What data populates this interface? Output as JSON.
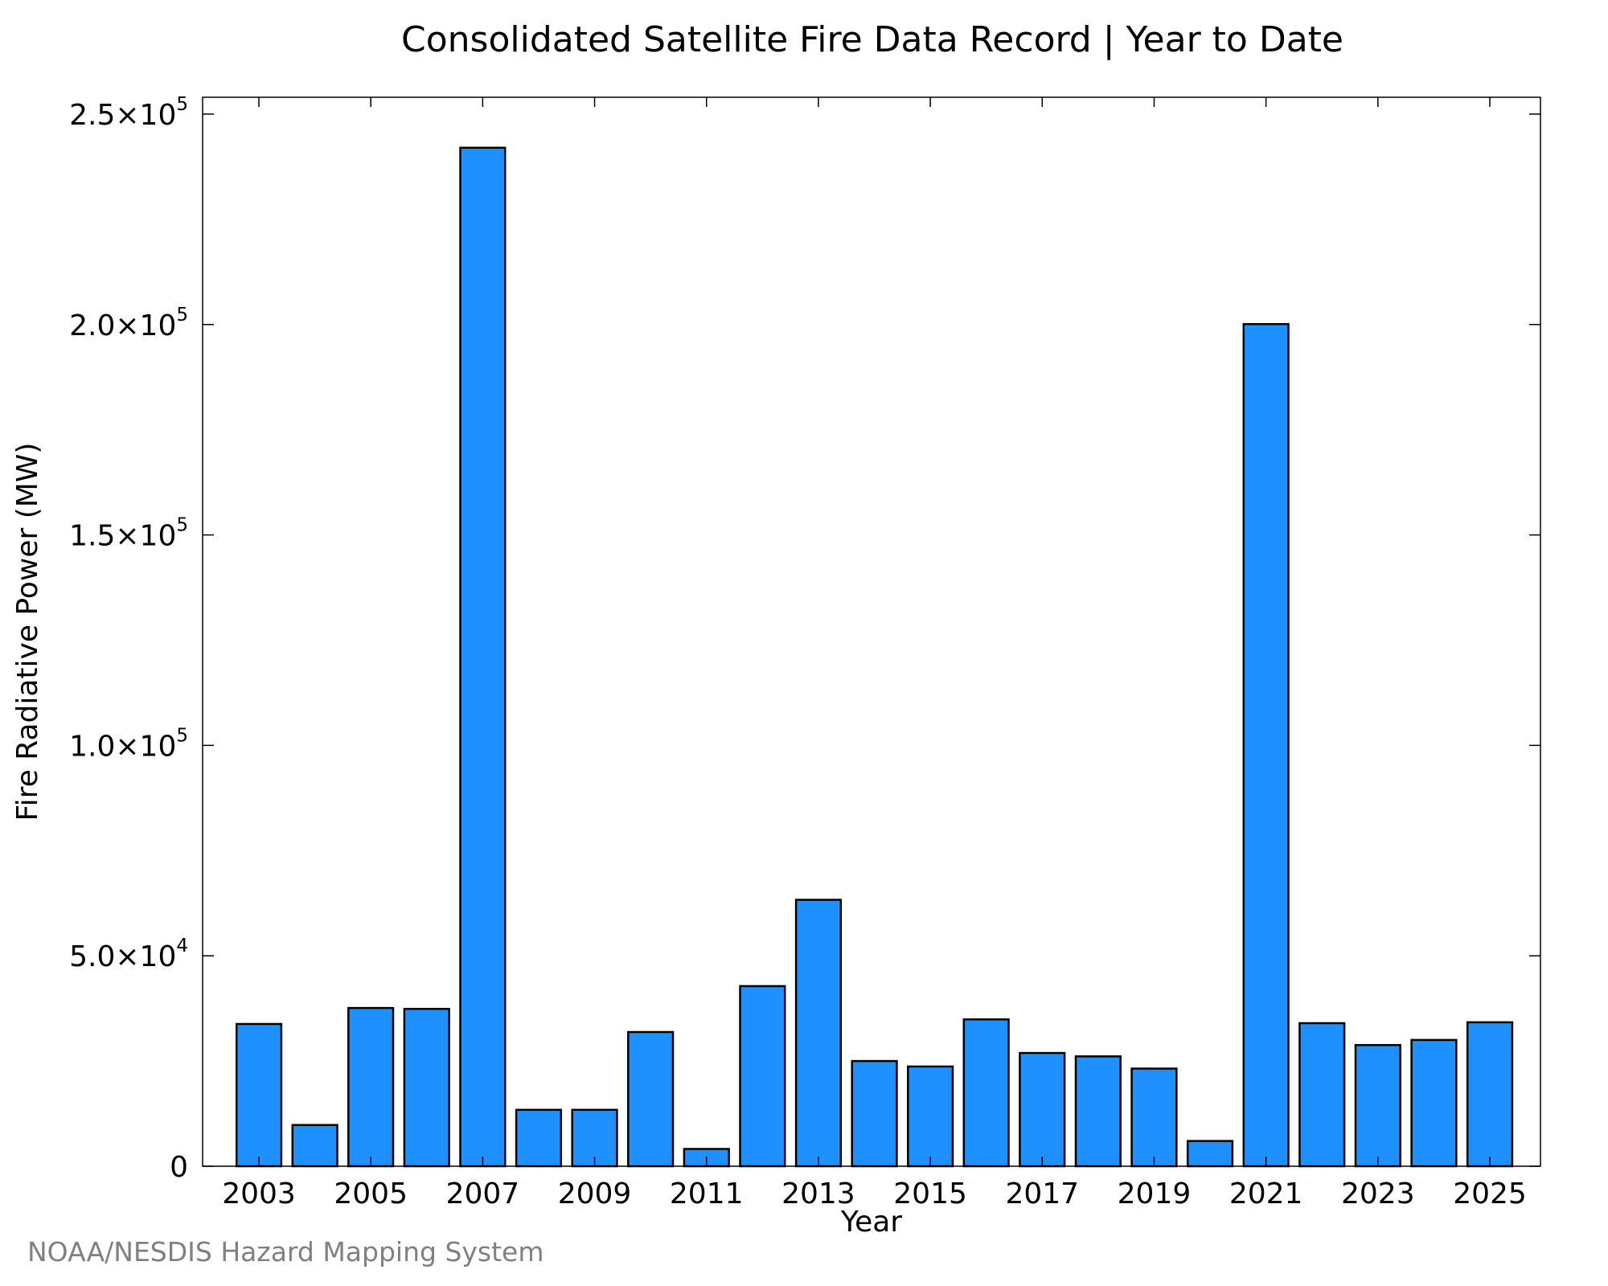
{
  "chart_data": {
    "type": "bar",
    "title": "Consolidated Satellite Fire Data Record | Year to Date",
    "xlabel": "Year",
    "ylabel": "Fire Radiative Power (MW)",
    "ylim": [
      0,
      254000
    ],
    "x_tick_labels": [
      "2003",
      "2005",
      "2007",
      "2009",
      "2011",
      "2013",
      "2015",
      "2017",
      "2019",
      "2021",
      "2023",
      "2025"
    ],
    "y_ticks": [
      {
        "value": 0,
        "mantissa": "0",
        "exponent": ""
      },
      {
        "value": 50000,
        "mantissa": "5.0×10",
        "exponent": "4"
      },
      {
        "value": 100000,
        "mantissa": "1.0×10",
        "exponent": "5"
      },
      {
        "value": 150000,
        "mantissa": "1.5×10",
        "exponent": "5"
      },
      {
        "value": 200000,
        "mantissa": "2.0×10",
        "exponent": "5"
      },
      {
        "value": 250000,
        "mantissa": "2.5×10",
        "exponent": "5"
      }
    ],
    "categories": [
      "2003",
      "2004",
      "2005",
      "2006",
      "2007",
      "2008",
      "2009",
      "2010",
      "2011",
      "2012",
      "2013",
      "2014",
      "2015",
      "2016",
      "2017",
      "2018",
      "2019",
      "2020",
      "2021",
      "2022",
      "2023",
      "2024",
      "2025"
    ],
    "values": [
      33800,
      9800,
      37600,
      37400,
      242000,
      13400,
      13400,
      31900,
      4100,
      42800,
      63300,
      25000,
      23700,
      34900,
      26900,
      26100,
      23200,
      6000,
      200100,
      34000,
      28800,
      30000,
      34200
    ],
    "grid": false,
    "legend": "none",
    "bar_color": "#1E90FF",
    "edge_color": "#000000"
  },
  "credit": "NOAA/NESDIS Hazard Mapping System"
}
